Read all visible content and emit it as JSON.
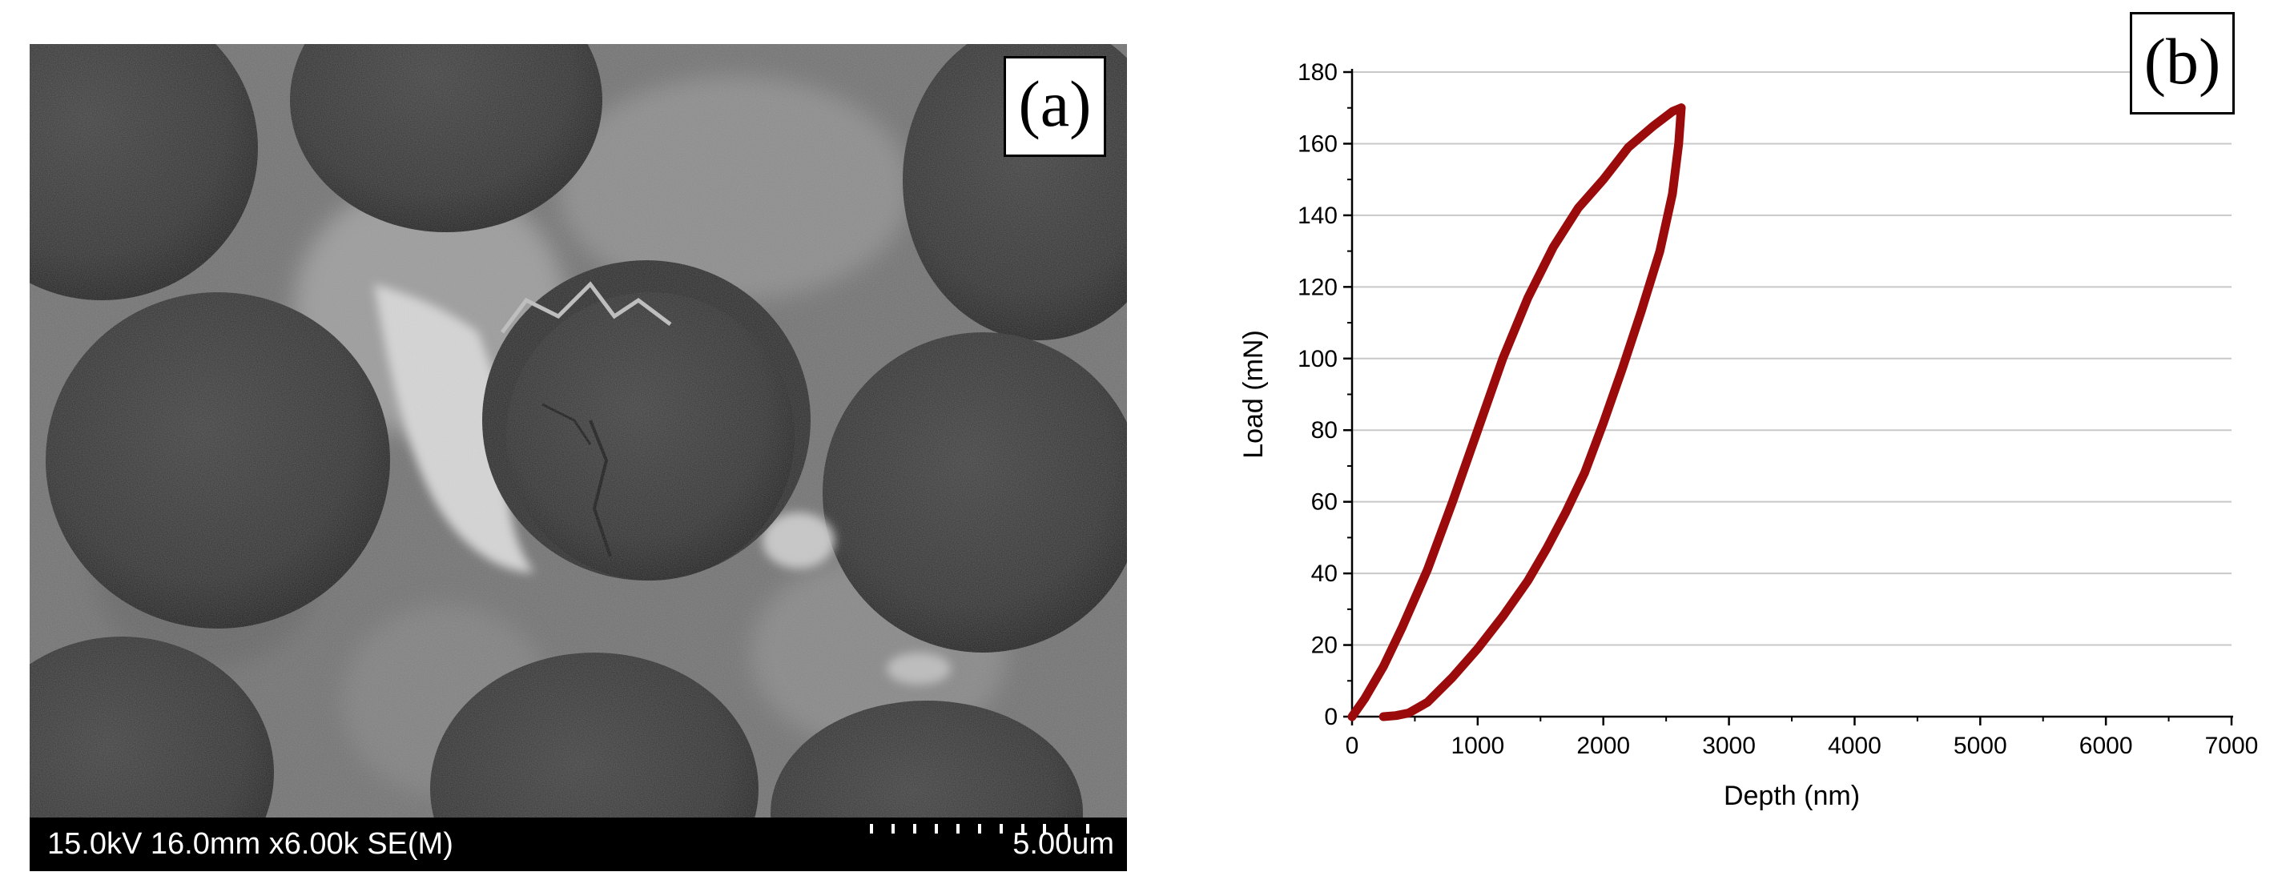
{
  "panel_a": {
    "label": "(a)",
    "sem_parameters": "15.0kV 16.0mm x6.00k SE(M)",
    "scale_bar_label": "5.00um"
  },
  "panel_b": {
    "label": "(b)"
  },
  "colors": {
    "curve": "#9b0b0b",
    "gridline": "#c8c8c8",
    "axis": "#000000"
  },
  "chart_data": {
    "type": "line",
    "title": "",
    "xlabel": "Depth (nm)",
    "ylabel": "Load (mN)",
    "xlim": [
      0,
      7000
    ],
    "ylim": [
      0,
      180
    ],
    "x_ticks": [
      0,
      1000,
      2000,
      3000,
      4000,
      5000,
      6000,
      7000
    ],
    "y_ticks": [
      0,
      20,
      40,
      60,
      80,
      100,
      120,
      140,
      160,
      180
    ],
    "grid": "horizontal",
    "legend": "none",
    "series": [
      {
        "segment": "loading",
        "x": [
          0,
          100,
          250,
          400,
          600,
          800,
          1000,
          1200,
          1400,
          1600,
          1800,
          2000,
          2200,
          2400,
          2550,
          2620
        ],
        "y": [
          0,
          5,
          14,
          25,
          41,
          60,
          80,
          100,
          117,
          131,
          142,
          150,
          159,
          165,
          169,
          170
        ]
      },
      {
        "segment": "unloading",
        "x": [
          2620,
          2600,
          2550,
          2450,
          2300,
          2150,
          2000,
          1850,
          1700,
          1550,
          1400,
          1200,
          1000,
          800,
          600,
          450,
          350,
          250
        ],
        "y": [
          170,
          160,
          146,
          130,
          113,
          97,
          82,
          68,
          57,
          47,
          38,
          28,
          19,
          11,
          4,
          1,
          0.3,
          0
        ]
      }
    ]
  }
}
